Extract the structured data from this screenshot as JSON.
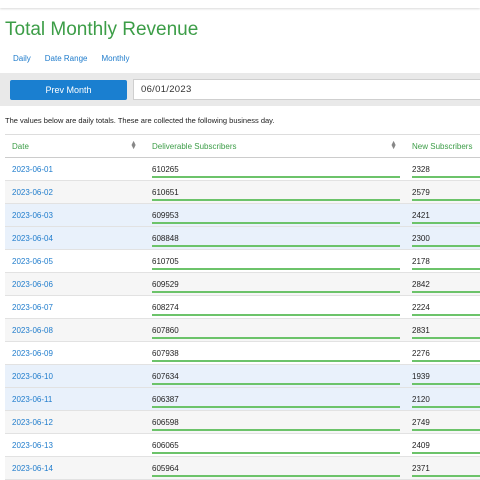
{
  "header": {
    "title": "Total Monthly Revenue",
    "tabs": [
      "Daily",
      "Date Range",
      "Monthly"
    ]
  },
  "toolbar": {
    "button": "Prev Month",
    "date": "06/01/2023"
  },
  "note": "The values below are daily totals. These are collected the following business day.",
  "table": {
    "columns": [
      "Date",
      "Deliverable Subscribers",
      "New Subscribers"
    ],
    "rows": [
      [
        "2023-06-01",
        610265,
        2328
      ],
      [
        "2023-06-02",
        610651,
        2579
      ],
      [
        "2023-06-03",
        609953,
        2421
      ],
      [
        "2023-06-04",
        608848,
        2300
      ],
      [
        "2023-06-05",
        610705,
        2178
      ],
      [
        "2023-06-06",
        609529,
        2842
      ],
      [
        "2023-06-07",
        608274,
        2224
      ],
      [
        "2023-06-08",
        607860,
        2831
      ],
      [
        "2023-06-09",
        607938,
        2276
      ],
      [
        "2023-06-10",
        607634,
        1939
      ],
      [
        "2023-06-11",
        606387,
        2120
      ],
      [
        "2023-06-12",
        606598,
        2749
      ],
      [
        "2023-06-13",
        606065,
        2409
      ],
      [
        "2023-06-14",
        605964,
        2371
      ]
    ]
  }
}
